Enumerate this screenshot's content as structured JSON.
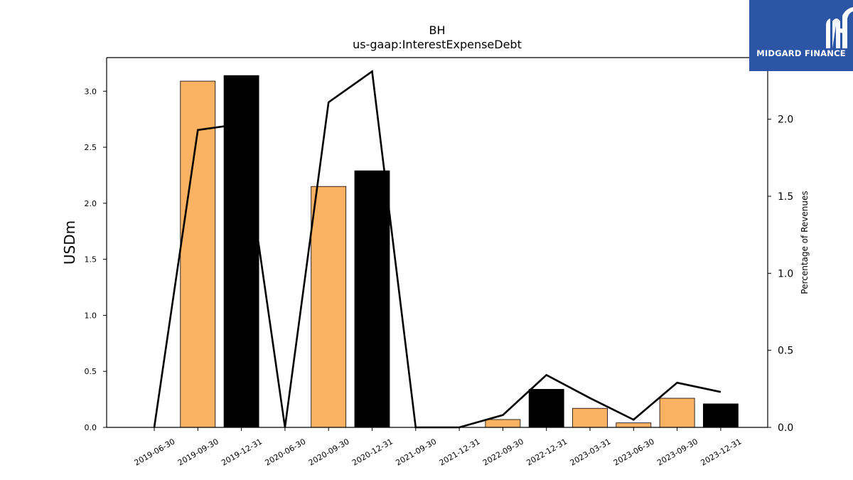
{
  "logo": {
    "text": "MIDGARD FINANCE",
    "icon": "midgard-logo-icon"
  },
  "chart_data": {
    "type": "bar",
    "title": "BH",
    "subtitle": "us-gaap:InterestExpenseDebt",
    "ylabel": "USDm",
    "y2label": "Percentage of Revenues",
    "categories": [
      "2019-06-30",
      "2019-09-30",
      "2019-12-31",
      "2020-06-30",
      "2020-09-30",
      "2020-12-31",
      "2021-09-30",
      "2021-12-31",
      "2022-09-30",
      "2022-12-31",
      "2023-03-31",
      "2023-06-30",
      "2023-09-30",
      "2023-12-31"
    ],
    "series": [
      {
        "axis": "left",
        "type": "bar",
        "values": [
          0,
          3.09,
          3.14,
          0,
          2.15,
          2.29,
          0,
          0,
          0.07,
          0.34,
          0.17,
          0.04,
          0.26,
          0.21
        ],
        "colors": [
          "#fbb263",
          "#fbb263",
          "#000000",
          "#fbb263",
          "#fbb263",
          "#000000",
          "#fbb263",
          "#000000",
          "#fbb263",
          "#000000",
          "#fbb263",
          "#fbb263",
          "#fbb263",
          "#000000"
        ]
      },
      {
        "axis": "right",
        "type": "line",
        "color": "#000000",
        "values": [
          0,
          1.93,
          1.97,
          0,
          2.11,
          2.31,
          0,
          0,
          0.08,
          0.34,
          0.19,
          0.05,
          0.29,
          0.23
        ]
      }
    ],
    "ylim": [
      0,
      3.3
    ],
    "y2lim": [
      0,
      2.4
    ],
    "yticks": [
      "0.0",
      "0.5",
      "1.0",
      "1.5",
      "2.0",
      "2.5",
      "3.0"
    ],
    "y2ticks": [
      "0.0",
      "0.5",
      "1.0",
      "1.5",
      "2.0"
    ],
    "grid": false
  }
}
